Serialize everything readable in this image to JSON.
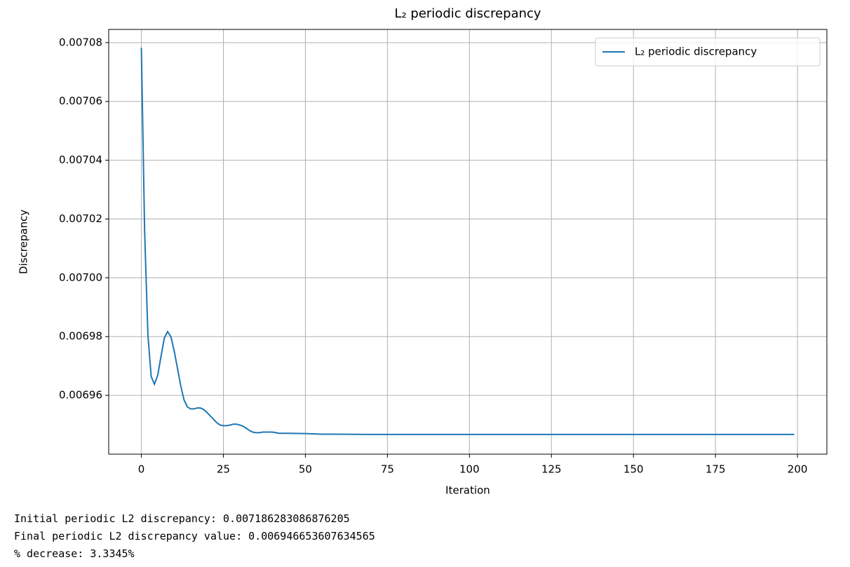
{
  "chart_data": {
    "type": "line",
    "title": "L₂ periodic discrepancy",
    "xlabel": "Iteration",
    "ylabel": "Discrepancy",
    "x": [
      0,
      1,
      2,
      3,
      4,
      5,
      6,
      7,
      8,
      9,
      10,
      11,
      12,
      13,
      14,
      15,
      16,
      17,
      18,
      19,
      20,
      21,
      22,
      23,
      24,
      25,
      26,
      27,
      28,
      29,
      30,
      31,
      32,
      33,
      34,
      35,
      36,
      37,
      38,
      39,
      40,
      41,
      42,
      43,
      44,
      45,
      50,
      55,
      60,
      70,
      80,
      90,
      100,
      110,
      120,
      130,
      140,
      150,
      160,
      170,
      180,
      190,
      199
    ],
    "series": [
      {
        "name": "L₂ periodic discrepancy",
        "color": "#1f77b4",
        "values": [
          0.0070783,
          0.0070158,
          0.0069805,
          0.0069664,
          0.0069638,
          0.0069669,
          0.0069733,
          0.0069795,
          0.0069817,
          0.00698,
          0.0069752,
          0.0069693,
          0.0069633,
          0.0069585,
          0.0069561,
          0.0069554,
          0.0069554,
          0.0069557,
          0.0069557,
          0.0069552,
          0.0069542,
          0.006953,
          0.0069519,
          0.0069507,
          0.0069499,
          0.0069497,
          0.0069497,
          0.0069499,
          0.0069502,
          0.0069502,
          0.0069499,
          0.0069495,
          0.0069488,
          0.006948,
          0.0069475,
          0.0069473,
          0.0069473,
          0.0069475,
          0.0069475,
          0.0069475,
          0.0069475,
          0.0069473,
          0.0069471,
          0.0069471,
          0.0069471,
          0.0069471,
          0.006947,
          0.0069468,
          0.0069468,
          0.0069467,
          0.0069467,
          0.0069467,
          0.0069467,
          0.0069467,
          0.0069467,
          0.0069467,
          0.0069467,
          0.0069467,
          0.0069467,
          0.0069467,
          0.0069467,
          0.0069467,
          0.0069467
        ]
      }
    ],
    "xlim": [
      -9.95,
      208.95
    ],
    "xticks": [
      0,
      25,
      50,
      75,
      100,
      125,
      150,
      175,
      200
    ],
    "ylim": [
      0.00694,
      0.0070845
    ],
    "yticks": [
      0.00696,
      0.00698,
      {
        "value": 0.007,
        "label": "0.00700"
      },
      0.00702,
      0.00704,
      0.00706,
      0.00708
    ],
    "grid": true,
    "legend": "upper right"
  },
  "output_text": [
    "Initial periodic L2 discrepancy: 0.007186283086876205",
    "Final periodic L2 discrepancy value: 0.006946653607634565",
    "% decrease: 3.3345%"
  ]
}
